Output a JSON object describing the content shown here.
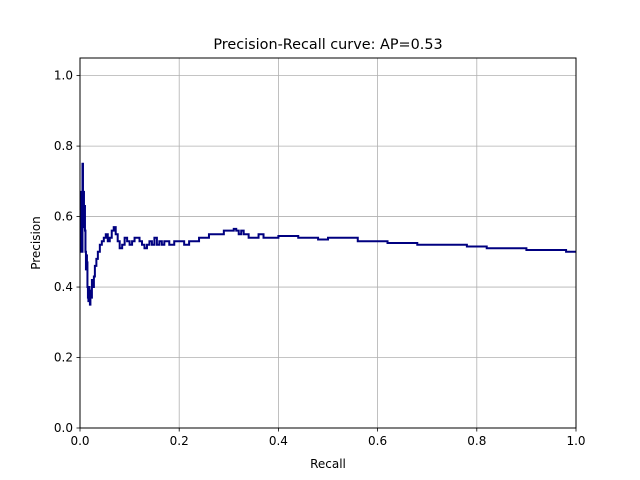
{
  "chart_data": {
    "type": "line",
    "title": "Precision-Recall curve: AP=0.53",
    "xlabel": "Recall",
    "ylabel": "Precision",
    "xlim": [
      0.0,
      1.0
    ],
    "ylim": [
      0.0,
      1.05
    ],
    "xticks": [
      "0.0",
      "0.2",
      "0.4",
      "0.6",
      "0.8",
      "1.0"
    ],
    "yticks": [
      "0.0",
      "0.2",
      "0.4",
      "0.6",
      "0.8",
      "1.0"
    ],
    "grid": true,
    "line_color": "#000080",
    "series": [
      {
        "x": [
          0.0,
          0.002,
          0.003,
          0.004,
          0.005,
          0.006,
          0.007,
          0.008,
          0.009,
          0.01,
          0.011,
          0.012,
          0.013,
          0.014,
          0.015,
          0.016,
          0.017,
          0.018,
          0.019,
          0.02,
          0.021,
          0.022,
          0.024,
          0.026,
          0.028,
          0.03,
          0.033,
          0.036,
          0.04,
          0.044,
          0.048,
          0.052,
          0.056,
          0.06,
          0.064,
          0.068,
          0.072,
          0.076,
          0.08,
          0.085,
          0.09,
          0.095,
          0.1,
          0.105,
          0.11,
          0.115,
          0.12,
          0.125,
          0.13,
          0.135,
          0.14,
          0.145,
          0.15,
          0.155,
          0.16,
          0.165,
          0.17,
          0.18,
          0.19,
          0.2,
          0.21,
          0.22,
          0.23,
          0.24,
          0.25,
          0.26,
          0.27,
          0.28,
          0.29,
          0.3,
          0.31,
          0.315,
          0.32,
          0.325,
          0.33,
          0.34,
          0.35,
          0.36,
          0.37,
          0.38,
          0.39,
          0.4,
          0.42,
          0.44,
          0.46,
          0.48,
          0.5,
          0.52,
          0.54,
          0.56,
          0.58,
          0.6,
          0.62,
          0.64,
          0.66,
          0.68,
          0.7,
          0.72,
          0.74,
          0.76,
          0.78,
          0.8,
          0.82,
          0.84,
          0.86,
          0.88,
          0.9,
          0.92,
          0.94,
          0.96,
          0.98,
          1.0
        ],
        "y": [
          0.5,
          0.6,
          0.67,
          0.5,
          0.75,
          0.6,
          0.67,
          0.57,
          0.63,
          0.56,
          0.5,
          0.45,
          0.49,
          0.47,
          0.4,
          0.37,
          0.36,
          0.4,
          0.38,
          0.35,
          0.39,
          0.37,
          0.42,
          0.4,
          0.43,
          0.46,
          0.48,
          0.5,
          0.52,
          0.53,
          0.54,
          0.55,
          0.53,
          0.54,
          0.56,
          0.57,
          0.55,
          0.53,
          0.51,
          0.52,
          0.54,
          0.53,
          0.52,
          0.53,
          0.54,
          0.54,
          0.53,
          0.52,
          0.51,
          0.52,
          0.53,
          0.52,
          0.54,
          0.52,
          0.53,
          0.52,
          0.53,
          0.52,
          0.53,
          0.53,
          0.52,
          0.53,
          0.53,
          0.54,
          0.54,
          0.55,
          0.55,
          0.55,
          0.56,
          0.56,
          0.565,
          0.56,
          0.55,
          0.56,
          0.55,
          0.54,
          0.54,
          0.55,
          0.54,
          0.54,
          0.54,
          0.545,
          0.545,
          0.54,
          0.54,
          0.535,
          0.54,
          0.54,
          0.54,
          0.53,
          0.53,
          0.53,
          0.525,
          0.525,
          0.525,
          0.52,
          0.52,
          0.52,
          0.52,
          0.52,
          0.515,
          0.515,
          0.51,
          0.51,
          0.51,
          0.51,
          0.505,
          0.505,
          0.505,
          0.505,
          0.5,
          0.5
        ]
      }
    ]
  }
}
